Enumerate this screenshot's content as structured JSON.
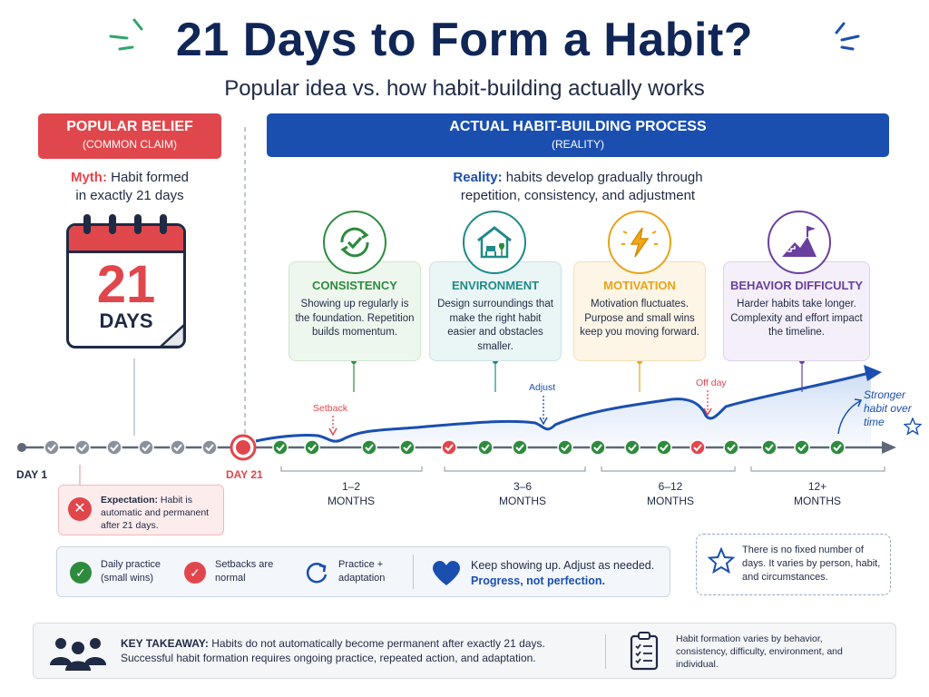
{
  "header": {
    "title": "21 Days to Form a Habit?",
    "subtitle": "Popular idea vs. how habit-building actually works"
  },
  "popular": {
    "banner_title": "POPULAR BELIEF",
    "banner_sub": "(COMMON CLAIM)",
    "myth_label": "Myth:",
    "myth_text": " Habit formed",
    "myth_text2": "in exactly 21 days",
    "calendar_number": "21",
    "calendar_unit": "DAYS"
  },
  "actual": {
    "banner_title": "ACTUAL HABIT-BUILDING PROCESS",
    "banner_sub": "(REALITY)",
    "reality_label": "Reality:",
    "reality_text": " habits develop gradually through",
    "reality_text2": "repetition, consistency, and adjustment"
  },
  "factors": [
    {
      "title": "CONSISTENCY",
      "desc": "Showing up regularly is the foundation. Repetition builds momentum.",
      "color": "#2e8b3e",
      "bg": "#eef7ee",
      "border": "#cfe6cf",
      "icon": "refresh-check-icon"
    },
    {
      "title": "ENVIRONMENT",
      "desc": "Design surroundings that make the right habit easier and obstacles smaller.",
      "color": "#1f8a8a",
      "bg": "#eaf5f5",
      "border": "#cae3e3",
      "icon": "home-icon"
    },
    {
      "title": "MOTIVATION",
      "desc": "Motivation fluctuates. Purpose and small wins keep you moving forward.",
      "color": "#e8a317",
      "bg": "#fdf5e6",
      "border": "#f3dfb6",
      "icon": "lightning-icon"
    },
    {
      "title": "BEHAVIOR DIFFICULTY",
      "desc": "Harder habits take longer. Complexity and effort impact the timeline.",
      "color": "#6a3fa0",
      "bg": "#f4eff9",
      "border": "#dcd0ea",
      "icon": "mountain-flag-icon"
    }
  ],
  "timeline": {
    "day1_label": "DAY 1",
    "day21_label": "DAY 21",
    "setback_label": "Setback",
    "adjust_label": "Adjust",
    "offday_label": "Off day",
    "stronger_label": "Stronger habit over time",
    "periods": [
      {
        "range": "1–2",
        "unit": "MONTHS"
      },
      {
        "range": "3–6",
        "unit": "MONTHS"
      },
      {
        "range": "6–12",
        "unit": "MONTHS"
      },
      {
        "range": "12+",
        "unit": "MONTHS"
      }
    ]
  },
  "expectation": {
    "label": "Expectation:",
    "text": " Habit is automatic and permanent after 21 days."
  },
  "legend": {
    "daily_practice": "Daily practice (small wins)",
    "setbacks": "Setbacks are normal",
    "practice_adapt": "Practice + adaptation",
    "keep_line1": "Keep showing up. Adjust as needed.",
    "keep_line2": "Progress, not perfection."
  },
  "note": {
    "text": "There is no fixed number of days. It varies by person, habit, and circumstances."
  },
  "takeaway": {
    "label": "KEY TAKEAWAY:",
    "text1": " Habits do not automatically become permanent after exactly 21 days.",
    "text2": "Successful habit formation requires ongoing practice, repeated action, and adaptation.",
    "side_text": "Habit formation varies by behavior, consistency, difficulty, environment, and individual."
  },
  "colors": {
    "red": "#e0474c",
    "blue": "#1a4fb0",
    "green": "#2e8b3e",
    "navy": "#0f2656"
  }
}
